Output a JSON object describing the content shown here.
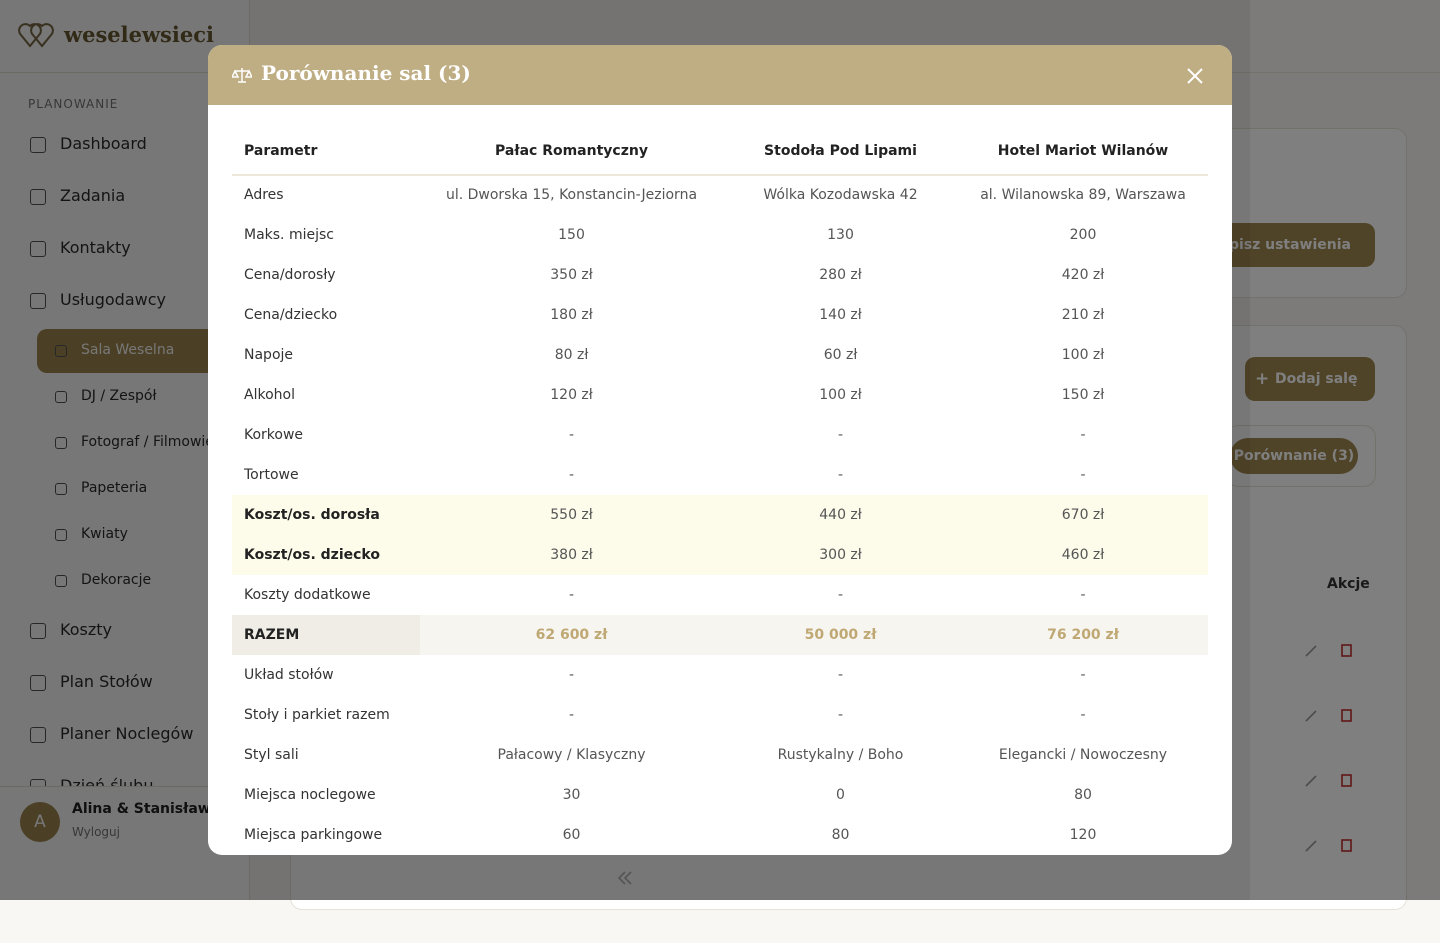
{
  "sidebar": {
    "brand": "weselewsieci",
    "section": "PLANOWANIE",
    "nav_top": [
      "Dashboard",
      "Zadania",
      "Kontakty",
      "Usługodawcy"
    ],
    "vendors": [
      "Sala Weselna",
      "DJ / Zespół",
      "Fotograf / Filmowiec",
      "Papeteria",
      "Kwiaty",
      "Dekoracje"
    ],
    "nav_bottom": [
      "Koszty",
      "Plan Stołów",
      "Planer Noclegów",
      "Dzień ślubu"
    ],
    "user": {
      "initial": "A",
      "name": "Alina & Stanisław",
      "logout": "Wyloguj"
    }
  },
  "background": {
    "settings_button": "Zapisz ustawienia",
    "add_button": "Dodaj salę",
    "compare_button": "Porównanie (3)",
    "actions_header": "Akcje"
  },
  "modal": {
    "title": "Porównanie sal (3)",
    "headers": [
      "Parametr",
      "Pałac Romantyczny",
      "Stodoła Pod Lipami",
      "Hotel Mariot Wilanów"
    ],
    "rows": [
      [
        "Adres",
        "ul. Dworska 15, Konstancin-Jeziorna",
        "Wólka Kozodawska 42",
        "al. Wilanowska 89, Warszawa"
      ],
      [
        "Maks. miejsc",
        "150",
        "130",
        "200"
      ],
      [
        "Cena/dorosły",
        "350 zł",
        "280 zł",
        "420 zł"
      ],
      [
        "Cena/dziecko",
        "180 zł",
        "140 zł",
        "210 zł"
      ],
      [
        "Napoje",
        "80 zł",
        "60 zł",
        "100 zł"
      ],
      [
        "Alkohol",
        "120 zł",
        "100 zł",
        "150 zł"
      ],
      [
        "Korkowe",
        "-",
        "-",
        "-"
      ],
      [
        "Tortowe",
        "-",
        "-",
        "-"
      ],
      [
        "Koszt/os. dorosła",
        "550 zł",
        "440 zł",
        "670 zł"
      ],
      [
        "Koszt/os. dziecko",
        "380 zł",
        "300 zł",
        "460 zł"
      ],
      [
        "Koszty dodatkowe",
        "-",
        "-",
        "-"
      ],
      [
        "RAZEM",
        "62 600 zł",
        "50 000 zł",
        "76 200 zł"
      ],
      [
        "Układ stołów",
        "-",
        "-",
        "-"
      ],
      [
        "Stoły i parkiet razem",
        "-",
        "-",
        "-"
      ],
      [
        "Styl sali",
        "Pałacowy / Klasyczny",
        "Rustykalny / Boho",
        "Elegancki / Nowoczesny"
      ],
      [
        "Miejsca noclegowe",
        "30",
        "0",
        "80"
      ],
      [
        "Miejsca parkingowe",
        "60",
        "80",
        "120"
      ]
    ]
  }
}
